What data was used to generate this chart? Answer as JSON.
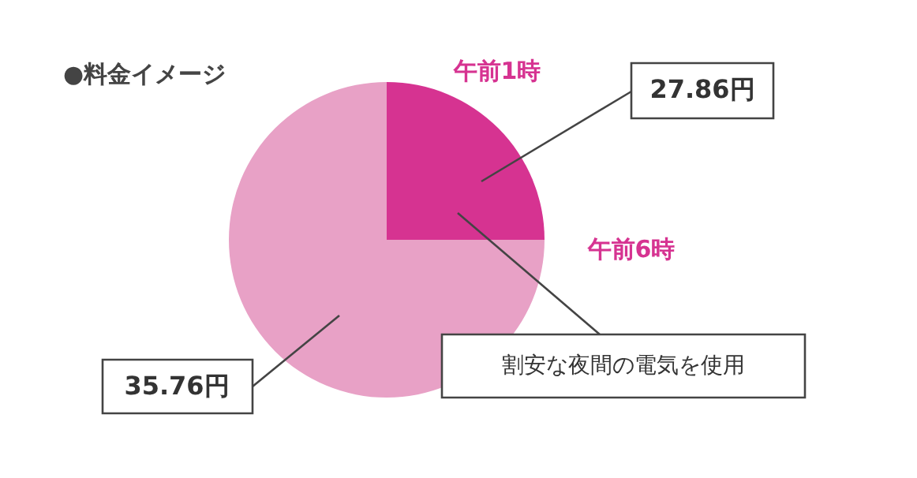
{
  "chart_data": {
    "type": "pie",
    "title": "●料金イメージ",
    "categories": [
      null,
      null
    ],
    "values": [
      25,
      75
    ],
    "colors": [
      "#d63391",
      "#e8a1c6"
    ],
    "annotations": [
      "午前1時",
      "午前6時",
      "27.86円",
      "35.76円",
      "割安な夜間の電気を使用"
    ]
  }
}
